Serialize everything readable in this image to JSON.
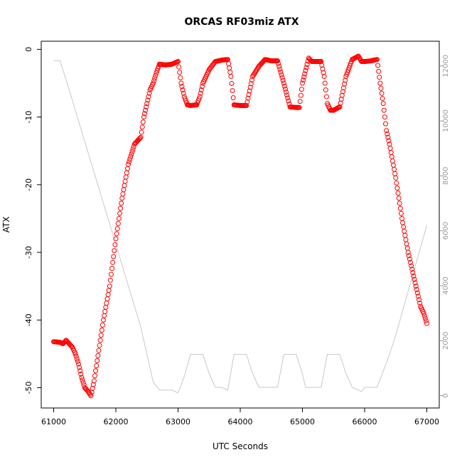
{
  "chart_data": {
    "type": "scatter",
    "title": "ORCAS RF03miz ATX",
    "xlabel": "UTC Seconds",
    "ylabel": "ATX",
    "xlim": [
      60800,
      67200
    ],
    "ylim": [
      -53,
      1.2
    ],
    "y2lim": [
      -450,
      12900
    ],
    "x_ticks": [
      61000,
      62000,
      63000,
      64000,
      65000,
      66000,
      67000
    ],
    "y_ticks": [
      0,
      -10,
      -20,
      -30,
      -40,
      -50
    ],
    "y2_ticks": [
      0,
      2000,
      4000,
      6000,
      8000,
      10000,
      12000
    ],
    "grid": false,
    "series": [
      {
        "kind": "points",
        "marker": "open-circle",
        "color": "#ff0000",
        "x": [
          61000,
          61100,
          61150,
          61200,
          61250,
          61300,
          61350,
          61400,
          61450,
          61500,
          61550,
          61600,
          61650,
          61700,
          61750,
          61800,
          61900,
          62000,
          62100,
          62200,
          62300,
          62400,
          62450,
          62500,
          62550,
          62600,
          62650,
          62700,
          62800,
          62900,
          63000,
          63050,
          63100,
          63150,
          63200,
          63300,
          63350,
          63400,
          63500,
          63600,
          63700,
          63800,
          63850,
          63900,
          64000,
          64100,
          64200,
          64300,
          64400,
          64500,
          64600,
          64700,
          64800,
          64900,
          64950,
          65000,
          65100,
          65150,
          65200,
          65300,
          65350,
          65400,
          65450,
          65500,
          65600,
          65700,
          65800,
          65900,
          65950,
          66000,
          66100,
          66200,
          66250,
          66300,
          66350,
          66400,
          66500,
          66600,
          66700,
          66800,
          66900,
          66950,
          67000
        ],
        "y": [
          -43.2,
          -43.3,
          -43.5,
          -43,
          -43.5,
          -44,
          -45,
          -46.5,
          -48.5,
          -50,
          -50.5,
          -51.2,
          -49,
          -46,
          -43,
          -40,
          -35,
          -28,
          -22,
          -17,
          -14,
          -13,
          -10,
          -8,
          -6,
          -5,
          -3.5,
          -2.2,
          -2.3,
          -2.2,
          -1.8,
          -5,
          -7,
          -8.2,
          -8.3,
          -8.2,
          -7,
          -5,
          -3,
          -1.8,
          -1.6,
          -1.5,
          -4,
          -8.2,
          -8.3,
          -8.3,
          -4,
          -2.5,
          -1.5,
          -1.7,
          -1.7,
          -5,
          -8.5,
          -8.6,
          -8.6,
          -5,
          -1.3,
          -1.8,
          -1.8,
          -1.8,
          -4,
          -8,
          -9,
          -9,
          -8.5,
          -4,
          -1.5,
          -1,
          -1.8,
          -1.8,
          -1.7,
          -1.5,
          -5,
          -8,
          -12,
          -14,
          -19,
          -25,
          -30,
          -34,
          -38,
          -39,
          -40.5
        ]
      },
      {
        "kind": "line",
        "axis": "right",
        "color": "#c8c8c8",
        "x": [
          61000,
          61100,
          61200,
          61400,
          61600,
          61800,
          62000,
          62200,
          62400,
          62600,
          62700,
          62800,
          62900,
          63000,
          63100,
          63200,
          63400,
          63500,
          63600,
          63700,
          63800,
          63900,
          64000,
          64100,
          64200,
          64300,
          64400,
          64500,
          64600,
          64700,
          64800,
          64900,
          65000,
          65050,
          65100,
          65200,
          65300,
          65400,
          65500,
          65600,
          65700,
          65800,
          65900,
          65950,
          66000,
          66100,
          66200,
          66300,
          66400,
          66500,
          66600,
          66700,
          66800,
          66900,
          67000
        ],
        "values": [
          12200,
          12200,
          11500,
          10000,
          8500,
          7000,
          5500,
          4000,
          2500,
          500,
          200,
          200,
          200,
          100,
          700,
          1500,
          1500,
          800,
          300,
          300,
          200,
          1500,
          1500,
          1500,
          800,
          300,
          300,
          300,
          300,
          1500,
          1500,
          1500,
          800,
          300,
          300,
          300,
          300,
          1500,
          1500,
          1500,
          800,
          300,
          200,
          150,
          300,
          300,
          300,
          900,
          1500,
          2200,
          3000,
          3800,
          4600,
          5400,
          6200
        ]
      }
    ]
  }
}
